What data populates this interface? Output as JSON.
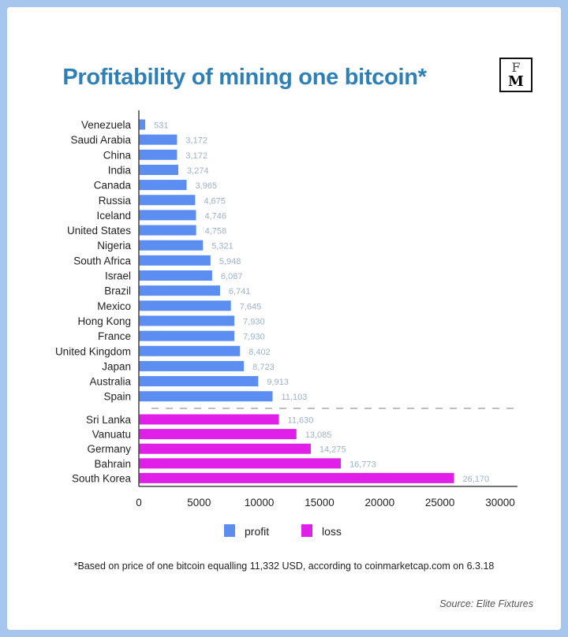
{
  "title": "Profitability of mining one bitcoin*",
  "logo_text": "FM",
  "footnote": "*Based on price of one bitcoin equalling 11,332 USD, according to coinmarketcap.com on 6.3.18",
  "source": "Source: Elite Fixtures",
  "colors": {
    "profit": "#5b8ef0",
    "loss": "#e020e8",
    "title": "#2c7fb8",
    "value_label": "#9db0cc"
  },
  "chart_data": {
    "type": "bar",
    "orientation": "horizontal",
    "title": "Profitability of mining one bitcoin*",
    "categories": [
      "Venezuela",
      "Saudi Arabia",
      "China",
      "India",
      "Canada",
      "Russia",
      "Iceland",
      "United States",
      "Nigeria",
      "South Africa",
      "Israel",
      "Brazil",
      "Mexico",
      "Hong Kong",
      "France",
      "United Kingdom",
      "Japan",
      "Australia",
      "Spain",
      "Sri Lanka",
      "Vanuatu",
      "Germany",
      "Bahrain",
      "South Korea"
    ],
    "values": [
      531,
      3172,
      3172,
      3274,
      3965,
      4675,
      4746,
      4758,
      5321,
      5948,
      6087,
      6741,
      7645,
      7930,
      7930,
      8402,
      8723,
      9913,
      11103,
      11630,
      13085,
      14275,
      16773,
      26170
    ],
    "value_labels": [
      "531",
      "3,172",
      "3,172",
      "3,274",
      "3,965",
      "4,675",
      "4,746",
      "4,758",
      "5,321",
      "5,948",
      "6,087",
      "6,741",
      "7,645",
      "7,930",
      "7,930",
      "8,402",
      "8,723",
      "9,913",
      "11,103",
      "11,630",
      "13,085",
      "14,275",
      "16,773",
      "26,170"
    ],
    "groups": [
      "profit",
      "profit",
      "profit",
      "profit",
      "profit",
      "profit",
      "profit",
      "profit",
      "profit",
      "profit",
      "profit",
      "profit",
      "profit",
      "profit",
      "profit",
      "profit",
      "profit",
      "profit",
      "profit",
      "loss",
      "loss",
      "loss",
      "loss",
      "loss"
    ],
    "xlim": [
      0,
      30000
    ],
    "xticks": [
      "0",
      "5000",
      "10000",
      "15000",
      "20000",
      "25000",
      "30000"
    ],
    "xtick_values": [
      0,
      5000,
      10000,
      15000,
      20000,
      25000,
      30000
    ],
    "legend": [
      "profit",
      "loss"
    ],
    "legend_position": "bottom",
    "xlabel": "",
    "ylabel": "",
    "grid": false
  }
}
